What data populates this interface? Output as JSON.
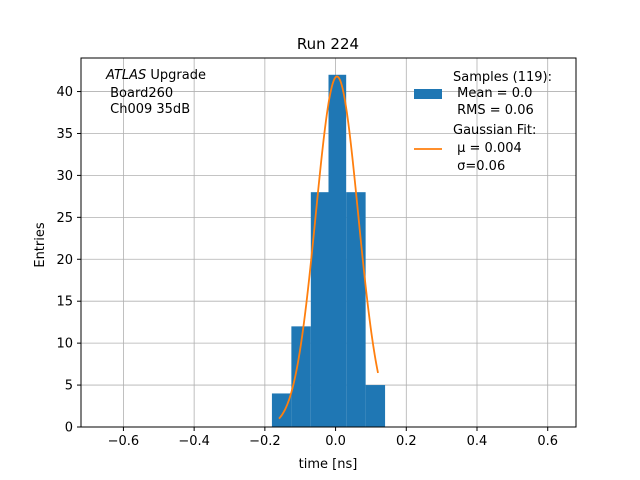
{
  "chart_data": {
    "type": "bar",
    "title": "Run 224",
    "xlabel": "time [ns]",
    "ylabel": "Entries",
    "xlim": [
      -0.72,
      0.68
    ],
    "ylim": [
      0,
      44
    ],
    "xticks": [
      -0.6,
      -0.4,
      -0.2,
      0.0,
      0.2,
      0.4,
      0.6
    ],
    "xtick_labels": [
      "−0.6",
      "−0.4",
      "−0.2",
      "0.0",
      "0.2",
      "0.4",
      "0.6"
    ],
    "yticks": [
      0,
      5,
      10,
      15,
      20,
      25,
      30,
      35,
      40
    ],
    "ytick_labels": [
      "0",
      "5",
      "10",
      "15",
      "20",
      "25",
      "30",
      "35",
      "40"
    ],
    "grid": true,
    "histogram": {
      "name": "Samples (119):",
      "color": "#1f77b4",
      "bin_edges": [
        -0.18,
        -0.125,
        -0.07,
        -0.02,
        0.03,
        0.085,
        0.14
      ],
      "counts": [
        4,
        12,
        28,
        42,
        28,
        5
      ]
    },
    "fit": {
      "name": "Gaussian Fit:",
      "color": "#ff7f0e",
      "mu": 0.004,
      "sigma": 0.06,
      "amplitude": 41.8,
      "x_range": [
        -0.16,
        0.12
      ]
    },
    "legend": {
      "placement": "top-right",
      "hist_lines": [
        "Samples (119):",
        " Mean = 0.0",
        " RMS = 0.06"
      ],
      "fit_lines": [
        "Gaussian Fit:",
        " μ = 0.004",
        " σ=0.06"
      ]
    },
    "annotation": {
      "italic_part": "ATLAS",
      "rest_part": " Upgrade",
      "lines": [
        " Board260",
        " Ch009 35dB"
      ]
    }
  }
}
